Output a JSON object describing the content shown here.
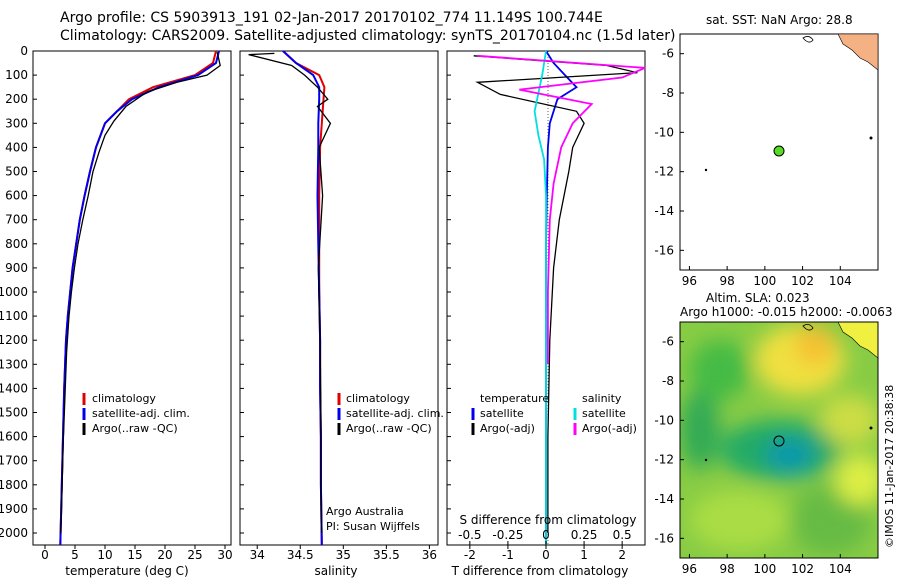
{
  "header": {
    "line1": "Argo profile: CS 5903913_191 02-Jan-2017 20170102_774 11.149S 100.744E",
    "line2": "Climatology: CARS2009. Satellite-adjusted climatology: synTS_20170104.nc (1.5d later)"
  },
  "colors": {
    "climatology": "#e00000",
    "satellite": "#0000ee",
    "argo": "#000000",
    "sat_sal": "#00e0e0",
    "argo_sal": "#ff00ff",
    "land": "#f4b183",
    "float_dot": "#55dd22"
  },
  "depth_ticks": [
    "0",
    "100",
    "200",
    "300",
    "400",
    "500",
    "600",
    "700",
    "800",
    "900",
    "1000",
    "1100",
    "1200",
    "1300",
    "1400",
    "1500",
    "1600",
    "1700",
    "1800",
    "1900",
    "2000"
  ],
  "panels": {
    "temperature": {
      "xlabel": "temperature (deg C)",
      "xticks": [
        "0",
        "5",
        "10",
        "15",
        "20",
        "25",
        "30"
      ],
      "legend": [
        "climatology",
        "satellite-adj. clim.",
        "Argo(..raw -QC)"
      ]
    },
    "salinity": {
      "xlabel": "salinity",
      "xticks": [
        "34",
        "34.5",
        "35",
        "35.5",
        "36"
      ],
      "legend": [
        "climatology",
        "satellite-adj. clim.",
        "Argo(..raw -QC)"
      ],
      "credit1": "Argo Australia",
      "credit2": "PI: Susan Wijffels"
    },
    "difference": {
      "xlabel": "T difference from climatology",
      "top_label": "S difference from climatology",
      "s_ticks": [
        "-0.5",
        "-0.25",
        "0",
        "0.25",
        "0.5"
      ],
      "t_ticks": [
        "-2",
        "-1",
        "0",
        "1",
        "2"
      ],
      "legend_head_t": "temperature",
      "legend_head_s": "salinity",
      "legend_t": [
        "satellite",
        "Argo(-adj)"
      ],
      "legend_s": [
        "satellite",
        "Argo(-adj)"
      ]
    },
    "sst_map": {
      "title": "sat. SST: NaN Argo: 28.8",
      "yticks": [
        "-6",
        "-8",
        "-10",
        "-12",
        "-14",
        "-16"
      ],
      "xticks": [
        "96",
        "98",
        "100",
        "102",
        "104"
      ]
    },
    "sla_map": {
      "title1": "Altim. SLA: 0.023",
      "title2": "Argo h1000: -0.015 h2000: -0.0063",
      "yticks": [
        "-6",
        "-8",
        "-10",
        "-12",
        "-14",
        "-16"
      ],
      "xticks": [
        "96",
        "98",
        "100",
        "102",
        "104"
      ]
    }
  },
  "stamp": "©IMOS 11-Jan-2017 20:38:38",
  "chart_data": [
    {
      "type": "line",
      "title": "",
      "xlabel": "temperature (deg C)",
      "ylabel": "",
      "xlim": [
        -2,
        31
      ],
      "ylim": [
        2100,
        0
      ],
      "series": [
        {
          "name": "climatology",
          "x": [
            28.5,
            28.0,
            25,
            18,
            14,
            12,
            10,
            8.5,
            7.5,
            6.6,
            5.8,
            5.2,
            4.6,
            4.2,
            3.8,
            3.5,
            3.2,
            3.0,
            2.8,
            2.7,
            2.6,
            2.55
          ],
          "y": [
            0,
            50,
            100,
            150,
            200,
            250,
            300,
            400,
            500,
            600,
            700,
            800,
            900,
            1000,
            1100,
            1200,
            1400,
            1600,
            1800,
            1900,
            2000,
            2050
          ]
        },
        {
          "name": "satellite-adj. clim.",
          "x": [
            29,
            28.5,
            25.5,
            19,
            14.5,
            12,
            10,
            8.5,
            7.5,
            6.6,
            5.8,
            5.2,
            4.6,
            4.2,
            3.8,
            3.5,
            3.2,
            3.0,
            2.8,
            2.7,
            2.6,
            2.55
          ],
          "y": [
            0,
            50,
            100,
            150,
            200,
            250,
            300,
            400,
            500,
            600,
            700,
            800,
            900,
            1000,
            1100,
            1200,
            1400,
            1600,
            1800,
            1900,
            2000,
            2050
          ]
        },
        {
          "name": "Argo(..raw -QC)",
          "x": [
            28.7,
            29.2,
            27,
            22,
            17,
            13.5,
            11.5,
            10,
            9,
            8,
            7.2,
            6.3,
            5.5,
            4.9,
            4.4,
            4.0,
            3.6,
            3.3,
            3.0,
            2.8,
            2.7,
            2.6
          ],
          "y": [
            5,
            60,
            100,
            130,
            170,
            230,
            290,
            350,
            420,
            500,
            600,
            700,
            800,
            900,
            1000,
            1100,
            1250,
            1450,
            1650,
            1850,
            1950,
            2000
          ]
        }
      ]
    },
    {
      "type": "line",
      "title": "",
      "xlabel": "salinity",
      "ylabel": "",
      "xlim": [
        33.8,
        36.1
      ],
      "ylim": [
        2100,
        0
      ],
      "series": [
        {
          "name": "climatology",
          "x": [
            34.3,
            34.45,
            34.72,
            34.78,
            34.77,
            34.75,
            34.73,
            34.72,
            34.72,
            34.72,
            34.73,
            34.73,
            34.74,
            34.74,
            34.75
          ],
          "y": [
            0,
            50,
            100,
            150,
            200,
            300,
            400,
            600,
            800,
            1000,
            1200,
            1400,
            1600,
            1800,
            2050
          ]
        },
        {
          "name": "satellite-adj. clim.",
          "x": [
            34.3,
            34.45,
            34.65,
            34.72,
            34.72,
            34.71,
            34.71,
            34.7,
            34.71,
            34.72,
            34.73,
            34.73,
            34.74,
            34.74,
            34.75
          ],
          "y": [
            0,
            50,
            100,
            150,
            200,
            300,
            400,
            600,
            800,
            1000,
            1200,
            1400,
            1600,
            1800,
            2050
          ]
        },
        {
          "name": "Argo(..raw -QC)",
          "x": [
            34.2,
            33.9,
            34.4,
            34.55,
            34.7,
            34.82,
            34.7,
            34.85,
            34.72,
            34.76,
            34.71,
            34.73,
            34.74,
            34.74,
            34.75
          ],
          "y": [
            10,
            15,
            60,
            100,
            150,
            200,
            230,
            300,
            400,
            600,
            900,
            1200,
            1500,
            1800,
            2000
          ]
        }
      ]
    },
    {
      "type": "line",
      "title": "",
      "xlabel": "T difference from climatology",
      "ylabel": "",
      "xlim": [
        -2.6,
        2.6
      ],
      "ylim": [
        2100,
        0
      ],
      "series": [
        {
          "name": "temperature satellite",
          "x": [
            0,
            0.2,
            0.5,
            0.8,
            0.3,
            0.1,
            0.05,
            0.02,
            0.0,
            0.0,
            0.0,
            0.0,
            0.0
          ],
          "y": [
            0,
            50,
            100,
            150,
            200,
            300,
            400,
            600,
            800,
            1000,
            1400,
            1800,
            2050
          ]
        },
        {
          "name": "temperature Argo(-adj)",
          "x": [
            -1.9,
            1.6,
            2.4,
            -1.8,
            -1.2,
            0.8,
            1.0,
            0.7,
            0.6,
            0.35,
            0.2,
            0.1,
            0.05,
            0.05
          ],
          "y": [
            20,
            60,
            90,
            130,
            180,
            250,
            300,
            400,
            500,
            700,
            900,
            1200,
            1600,
            2000
          ]
        },
        {
          "name": "salinity satellite",
          "x": [
            0,
            -0.1,
            -0.3,
            -0.2,
            -0.05,
            0.0,
            0.0,
            0.0,
            0.0,
            0.0
          ],
          "y": [
            0,
            100,
            250,
            350,
            450,
            600,
            900,
            1200,
            1600,
            2050
          ]
        },
        {
          "name": "salinity Argo(-adj)",
          "x": [
            -1.8,
            2.6,
            2.0,
            -0.7,
            1.2,
            0.7,
            0.4,
            0.2,
            0.1,
            0.05,
            0.05
          ],
          "y": [
            20,
            70,
            110,
            160,
            220,
            300,
            400,
            550,
            700,
            1000,
            1300
          ]
        }
      ]
    }
  ]
}
